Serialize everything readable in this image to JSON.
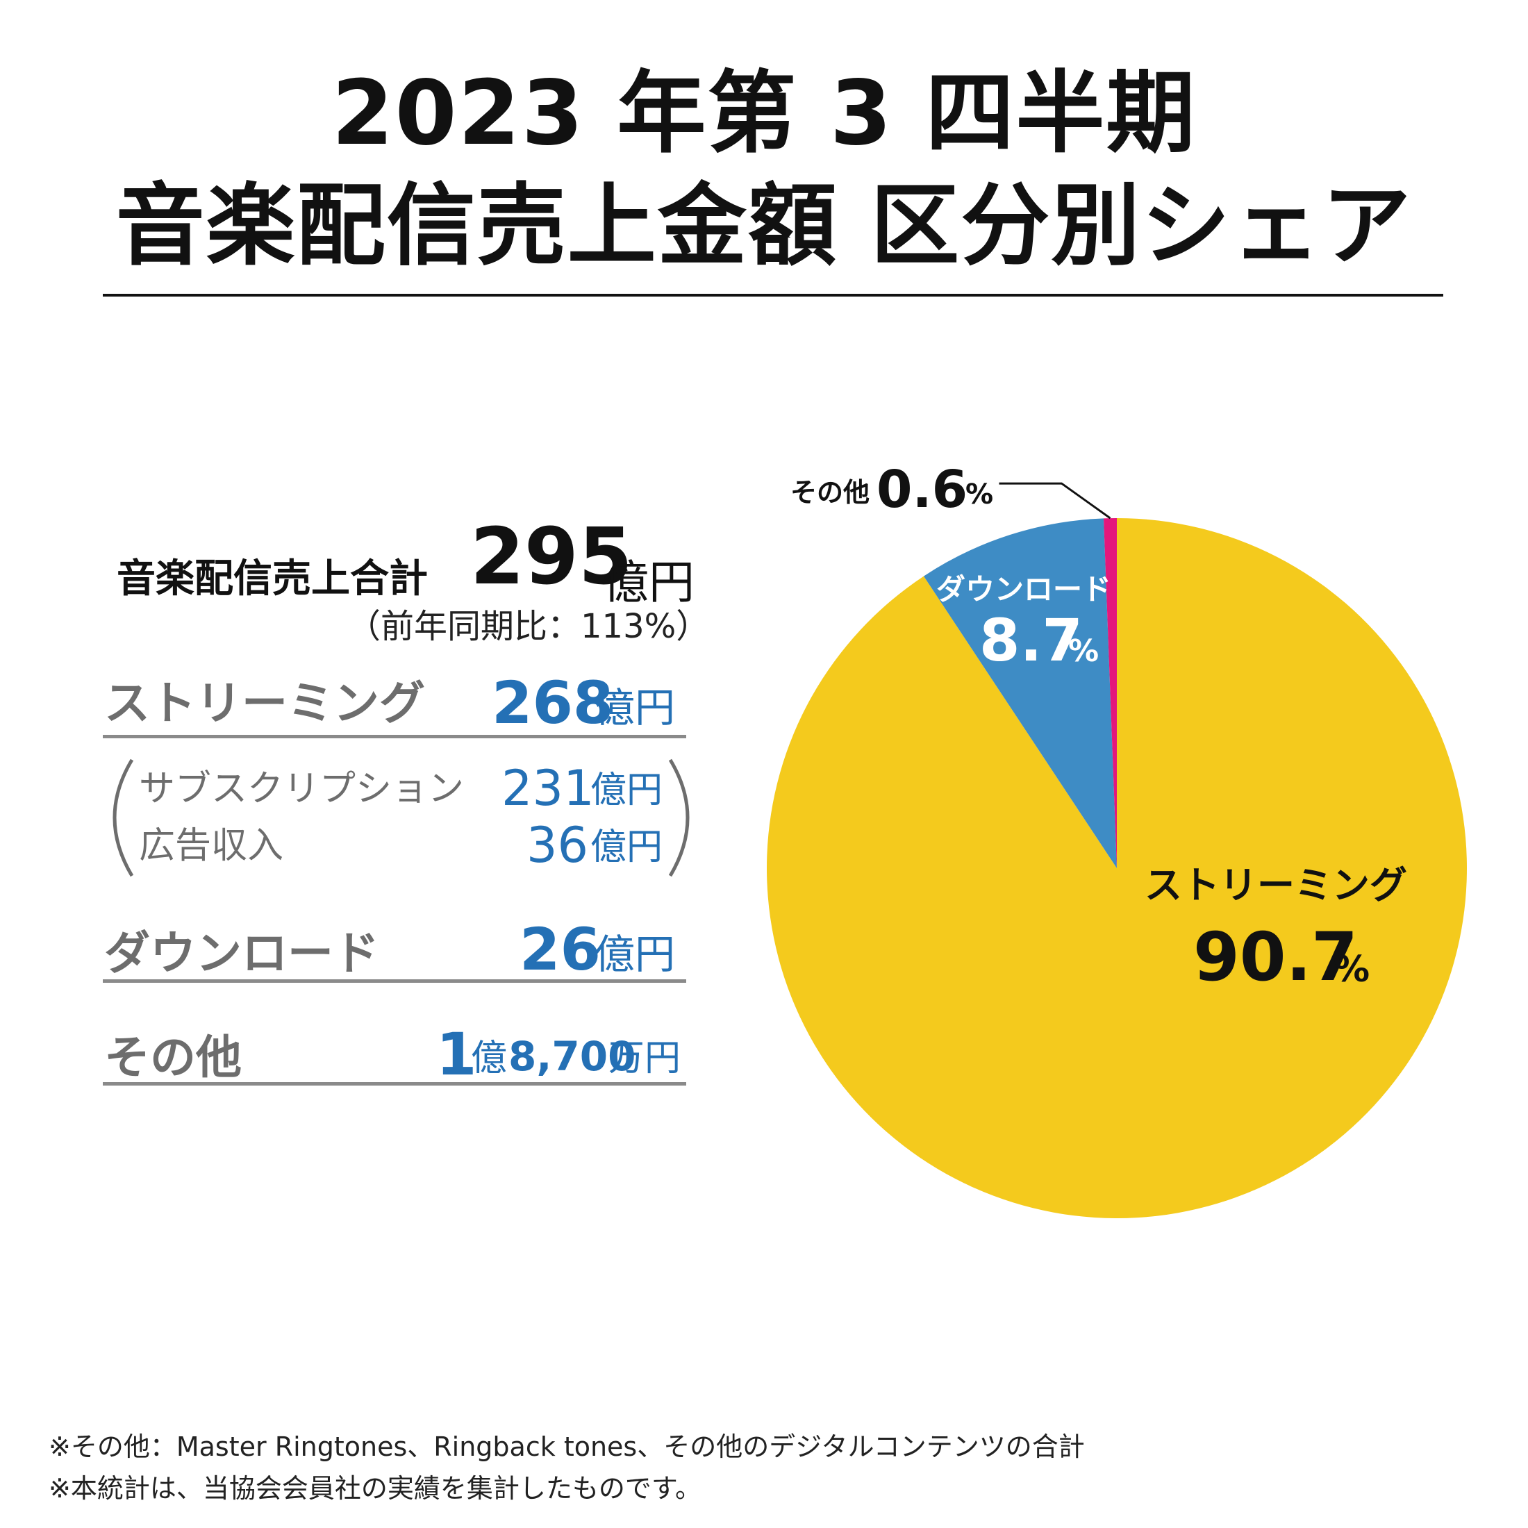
{
  "title": {
    "line1": "2023 年第 3 四半期",
    "line2": "音楽配信売上金額 区分別シェア"
  },
  "summary": {
    "total_label": "音楽配信売上合計",
    "total_value": "295",
    "total_unit": "億円",
    "yoy_note": "（前年同期比：113%）",
    "rows": {
      "streaming": {
        "label": "ストリーミング",
        "value": "268",
        "unit": "億円"
      },
      "download": {
        "label": "ダウンロード",
        "value": "26",
        "unit": "億円"
      },
      "other": {
        "label": "その他",
        "value_oku": "1",
        "unit_oku": "億",
        "value_man": "8,700",
        "unit_man": "万円"
      }
    },
    "sub": {
      "subscription": {
        "label": "サブスクリプション",
        "value": "231",
        "unit": "億円"
      },
      "ads": {
        "label": "広告収入",
        "value": "36",
        "unit": "億円"
      }
    }
  },
  "chart_data": {
    "type": "pie",
    "title": "2023 年第 3 四半期 音楽配信売上金額 区分別シェア",
    "unit": "%",
    "slices": [
      {
        "label": "ストリーミング",
        "value": 90.7,
        "value_text": "90.7",
        "color": "#f4ca1d"
      },
      {
        "label": "ダウンロード",
        "value": 8.7,
        "value_text": "8.7",
        "color": "#3e8cc5"
      },
      {
        "label": "その他",
        "value": 0.6,
        "value_text": "0.6",
        "color": "#e4177b"
      }
    ]
  },
  "footnotes": {
    "note1": "※その他：Master Ringtones、Ringback tones、その他のデジタルコンテンツの合計",
    "note2": "※本統計は、当協会会員社の実績を集計したものです。"
  }
}
